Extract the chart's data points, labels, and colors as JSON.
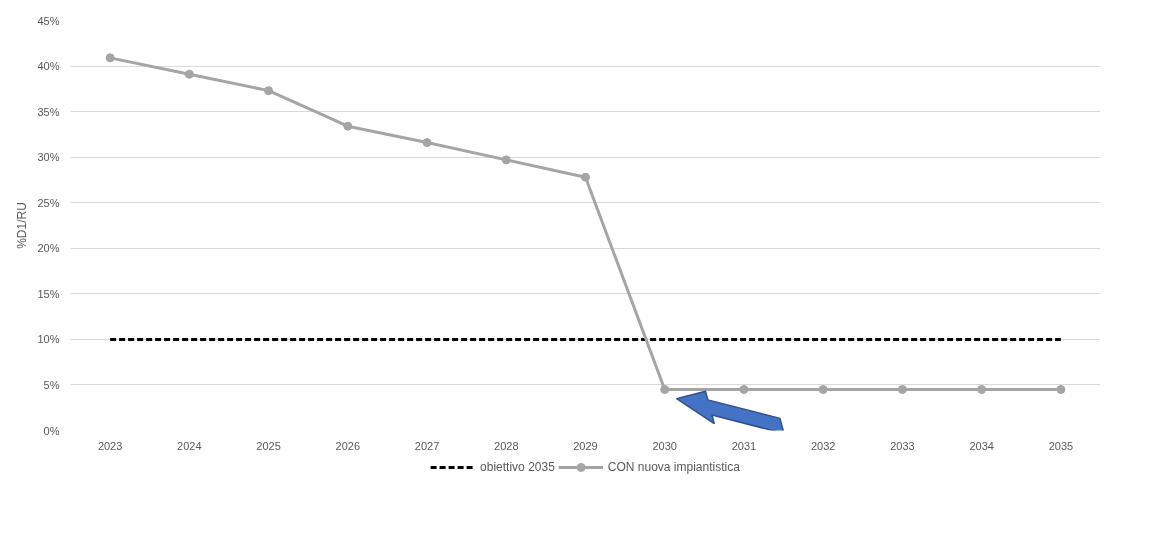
{
  "chart_data": {
    "type": "line",
    "ylabel": "%D1/RU",
    "categories": [
      "2023",
      "2024",
      "2025",
      "2026",
      "2027",
      "2028",
      "2029",
      "2030",
      "2031",
      "2032",
      "2033",
      "2034",
      "2035"
    ],
    "series": [
      {
        "name": "obiettivo 2035",
        "color": "#000000",
        "line_style": "dashed",
        "marker": "none",
        "values": [
          10,
          10,
          10,
          10,
          10,
          10,
          10,
          10,
          10,
          10,
          10,
          10,
          10
        ]
      },
      {
        "name": "CON nuova impiantistica",
        "color": "#a5a5a5",
        "line_style": "solid",
        "marker": "circle",
        "values": [
          40.9,
          39.1,
          37.3,
          33.4,
          31.6,
          29.7,
          27.8,
          4.5,
          4.5,
          4.5,
          4.5,
          4.5,
          4.5
        ]
      }
    ],
    "ylim": [
      0,
      45
    ],
    "yticks": [
      {
        "value": 0,
        "label": "0%"
      },
      {
        "value": 5,
        "label": "5%"
      },
      {
        "value": 10,
        "label": "10%"
      },
      {
        "value": 15,
        "label": "15%"
      },
      {
        "value": 20,
        "label": "20%"
      },
      {
        "value": 25,
        "label": "25%"
      },
      {
        "value": 30,
        "label": "30%"
      },
      {
        "value": 35,
        "label": "35%"
      },
      {
        "value": 40,
        "label": "40%"
      },
      {
        "value": 45,
        "label": "45%"
      }
    ],
    "grid": "y",
    "legend": "bottom"
  }
}
